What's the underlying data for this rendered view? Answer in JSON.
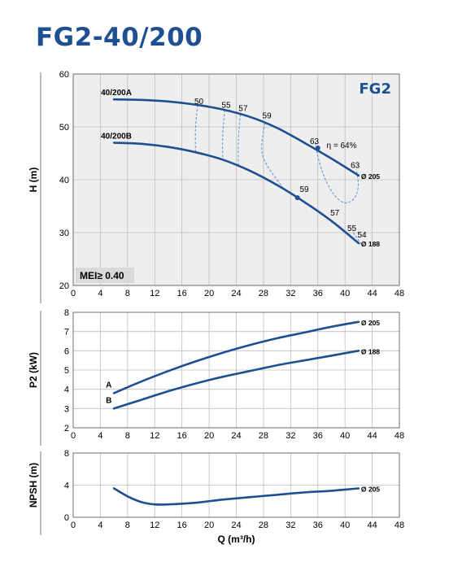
{
  "title": "FG2-40/200",
  "colors": {
    "curve": "#1d4f91",
    "grid": "#bdbdbd",
    "dashed": "#5a8fd0",
    "panel_bg": "#eeeeee",
    "text": "#000000"
  },
  "chart_data": [
    {
      "type": "line",
      "panel": "head",
      "model_label": "FG2",
      "ylabel": "H (m)",
      "xlim": [
        0,
        48
      ],
      "ylim": [
        20,
        60
      ],
      "x_ticks": [
        "0",
        "4",
        "8",
        "12",
        "16",
        "20",
        "24",
        "28",
        "32",
        "36",
        "40",
        "44",
        "48"
      ],
      "y_ticks": [
        "20",
        "30",
        "40",
        "50",
        "60"
      ],
      "series": [
        {
          "name": "40/200A",
          "end_label": "Ø 205",
          "x": [
            6,
            10,
            14,
            18,
            22,
            26,
            30,
            34,
            38,
            42
          ],
          "y": [
            55.2,
            55.1,
            54.8,
            54.2,
            53.3,
            51.9,
            49.8,
            47.0,
            44.0,
            40.8
          ]
        },
        {
          "name": "40/200B",
          "end_label": "Ø 188",
          "x": [
            6,
            10,
            14,
            18,
            22,
            26,
            30,
            34,
            38,
            42
          ],
          "y": [
            47.0,
            46.8,
            46.2,
            45.2,
            43.8,
            41.7,
            39.0,
            35.8,
            32.2,
            28.0
          ]
        }
      ],
      "efficiency_labels": [
        {
          "text": "50",
          "x": 18.5,
          "y": 54.3
        },
        {
          "text": "55",
          "x": 22.5,
          "y": 53.6
        },
        {
          "text": "57",
          "x": 25,
          "y": 53.0
        },
        {
          "text": "59",
          "x": 28.5,
          "y": 51.6
        },
        {
          "text": "63",
          "x": 35.5,
          "y": 46.8
        },
        {
          "text": "η = 64%",
          "x": 39.5,
          "y": 46.0
        },
        {
          "text": "63",
          "x": 41.5,
          "y": 42.2
        },
        {
          "text": "59",
          "x": 34,
          "y": 37.7
        },
        {
          "text": "57",
          "x": 38.5,
          "y": 33.2
        },
        {
          "text": "55",
          "x": 41,
          "y": 30.3
        },
        {
          "text": "54",
          "x": 42.5,
          "y": 29.1
        }
      ],
      "bep_points": [
        {
          "x": 36,
          "y": 46.0
        },
        {
          "x": 33,
          "y": 36.6
        }
      ],
      "mei_label": "MEI≥ 0.40"
    },
    {
      "type": "line",
      "panel": "power",
      "ylabel": "P2 (kW)",
      "xlim": [
        0,
        48
      ],
      "ylim": [
        2,
        8
      ],
      "x_ticks": [
        "0",
        "4",
        "8",
        "12",
        "16",
        "20",
        "24",
        "28",
        "32",
        "36",
        "40",
        "44",
        "48"
      ],
      "y_ticks": [
        "2",
        "3",
        "4",
        "5",
        "6",
        "7",
        "8"
      ],
      "series": [
        {
          "name": "A",
          "end_label": "Ø 205",
          "x": [
            6,
            10,
            14,
            18,
            22,
            26,
            30,
            34,
            38,
            42
          ],
          "y": [
            3.8,
            4.4,
            4.95,
            5.45,
            5.9,
            6.3,
            6.65,
            6.95,
            7.25,
            7.5
          ]
        },
        {
          "name": "B",
          "end_label": "Ø 188",
          "x": [
            6,
            10,
            14,
            18,
            22,
            26,
            30,
            34,
            38,
            42
          ],
          "y": [
            3.0,
            3.45,
            3.9,
            4.3,
            4.65,
            4.95,
            5.25,
            5.5,
            5.75,
            6.0
          ]
        }
      ]
    },
    {
      "type": "line",
      "panel": "npsh",
      "ylabel": "NPSH (m)",
      "xlabel": "Q (m³/h)",
      "xlim": [
        0,
        48
      ],
      "ylim": [
        0,
        8
      ],
      "x_ticks": [
        "0",
        "4",
        "8",
        "12",
        "16",
        "20",
        "24",
        "28",
        "32",
        "36",
        "40",
        "44",
        "48"
      ],
      "y_ticks": [
        "0",
        "4",
        "8"
      ],
      "series": [
        {
          "end_label": "Ø 205",
          "x": [
            6,
            8,
            10,
            12,
            14,
            18,
            22,
            26,
            30,
            34,
            38,
            42
          ],
          "y": [
            3.6,
            2.6,
            1.9,
            1.6,
            1.6,
            1.8,
            2.2,
            2.5,
            2.8,
            3.1,
            3.3,
            3.6
          ]
        }
      ]
    }
  ]
}
